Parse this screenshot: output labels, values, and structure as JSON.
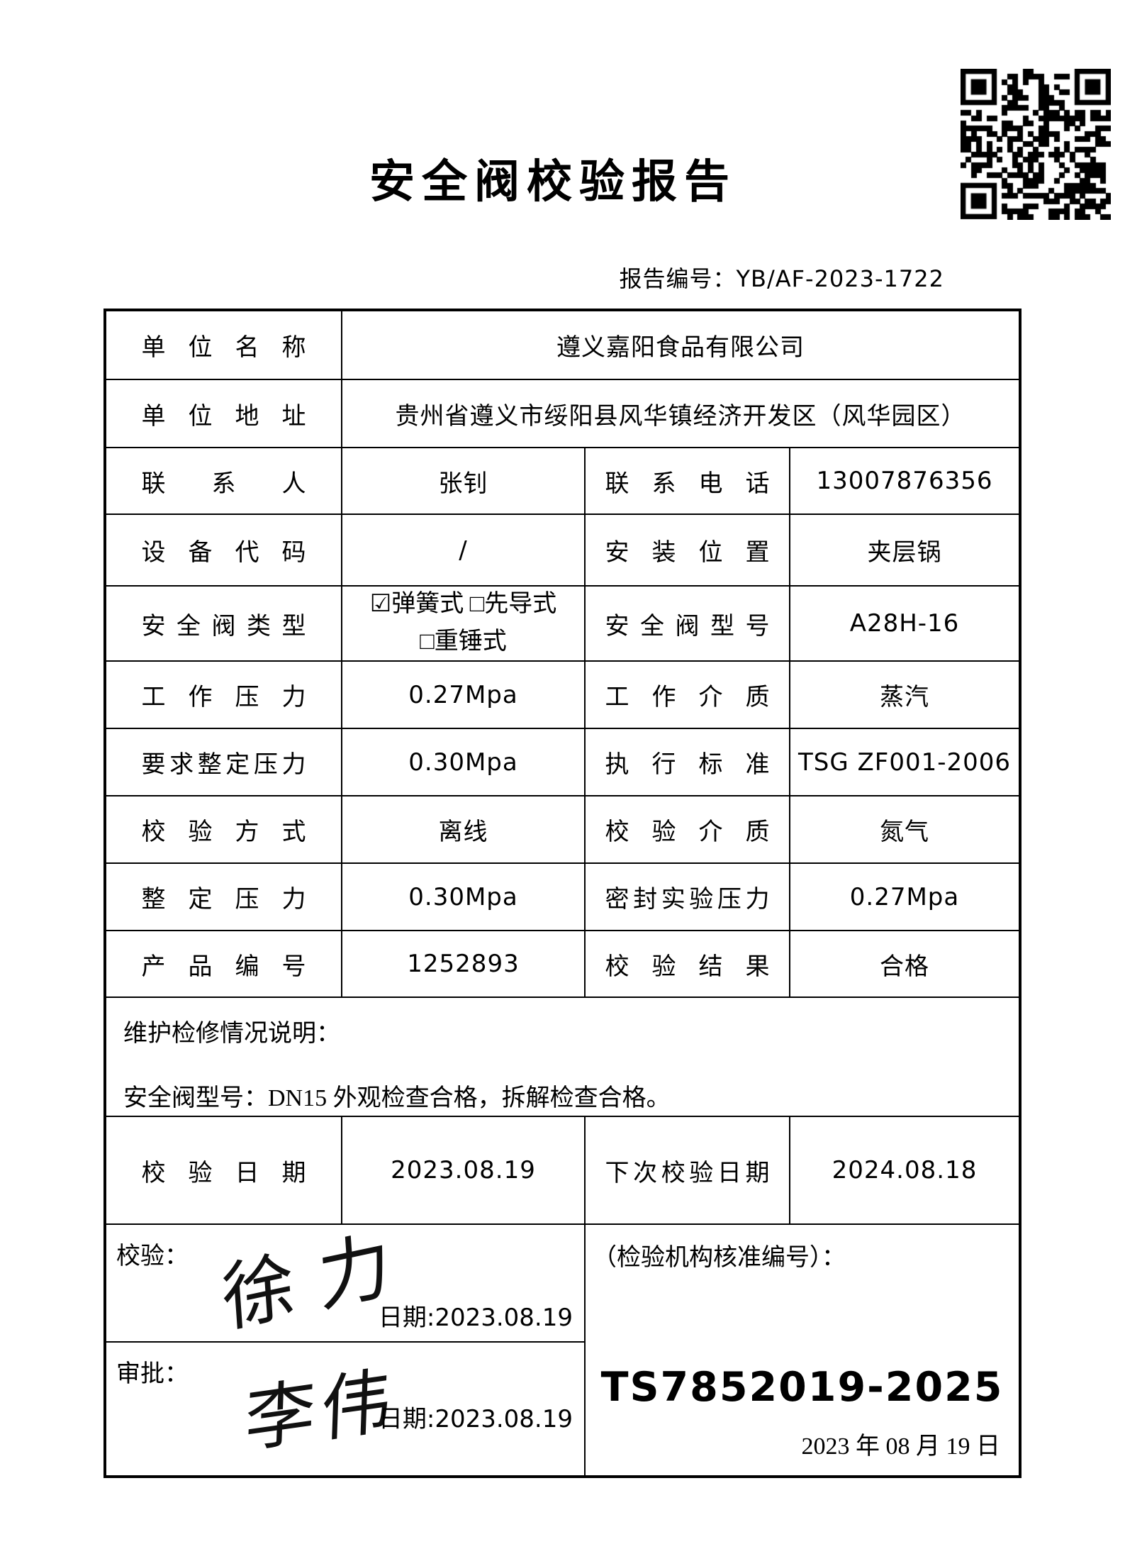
{
  "header": {
    "title": "安全阀校验报告",
    "report_no": "报告编号：YB/AF-2023-1722"
  },
  "table": {
    "unit_name": {
      "label": "单位名称",
      "value": "遵义嘉阳食品有限公司"
    },
    "unit_address": {
      "label": "单位地址",
      "value": "贵州省遵义市绥阳县风华镇经济开发区（风华园区）"
    },
    "contact": {
      "label": "联系人",
      "value": "张钊"
    },
    "phone": {
      "label": "联系电话",
      "value": "13007876356"
    },
    "device_code": {
      "label": "设备代码",
      "value": "/"
    },
    "install_location": {
      "label": "安装位置",
      "value": "夹层锅"
    },
    "valve_type": {
      "label": "安全阀类型",
      "line1": "☑弹簧式 □先导式",
      "line2": "□重锤式"
    },
    "valve_model": {
      "label": "安全阀型号",
      "value": "A28H-16"
    },
    "working_pressure": {
      "label": "工作压力",
      "value": "0.27Mpa"
    },
    "working_medium": {
      "label": "工作介质",
      "value": "蒸汽"
    },
    "required_set_pressure": {
      "label": "要求整定压力",
      "value": "0.30Mpa"
    },
    "standard": {
      "label": "执行标准",
      "value": "TSG ZF001-2006"
    },
    "calibration_method": {
      "label": "校验方式",
      "value": "离线"
    },
    "calibration_medium": {
      "label": "校验介质",
      "value": "氮气"
    },
    "set_pressure": {
      "label": "整定压力",
      "value": "0.30Mpa"
    },
    "seal_test_pressure": {
      "label": "密封实验压力",
      "value": "0.27Mpa"
    },
    "product_no": {
      "label": "产品编号",
      "value": "1252893"
    },
    "calibration_result": {
      "label": "校验结果",
      "value": "合格"
    },
    "maintenance": {
      "title": "维护检修情况说明：",
      "description": "安全阀型号：DN15 外观检查合格，拆解检查合格。"
    },
    "calibration_date": {
      "label": "校验日期",
      "value": "2023.08.19"
    },
    "next_calibration_date": {
      "label": "下次校验日期",
      "value": "2024.08.18"
    },
    "verifier": {
      "label": "校验：",
      "signature": "徐力",
      "date": "日期:2023.08.19"
    },
    "approver": {
      "label": "审批：",
      "signature": "李伟",
      "date": "日期:2023.08.19"
    },
    "agency": {
      "label": "（检验机构核准编号）：",
      "approval_no": "TS7852019-2025",
      "date": "2023 年 08 月 19 日"
    }
  }
}
